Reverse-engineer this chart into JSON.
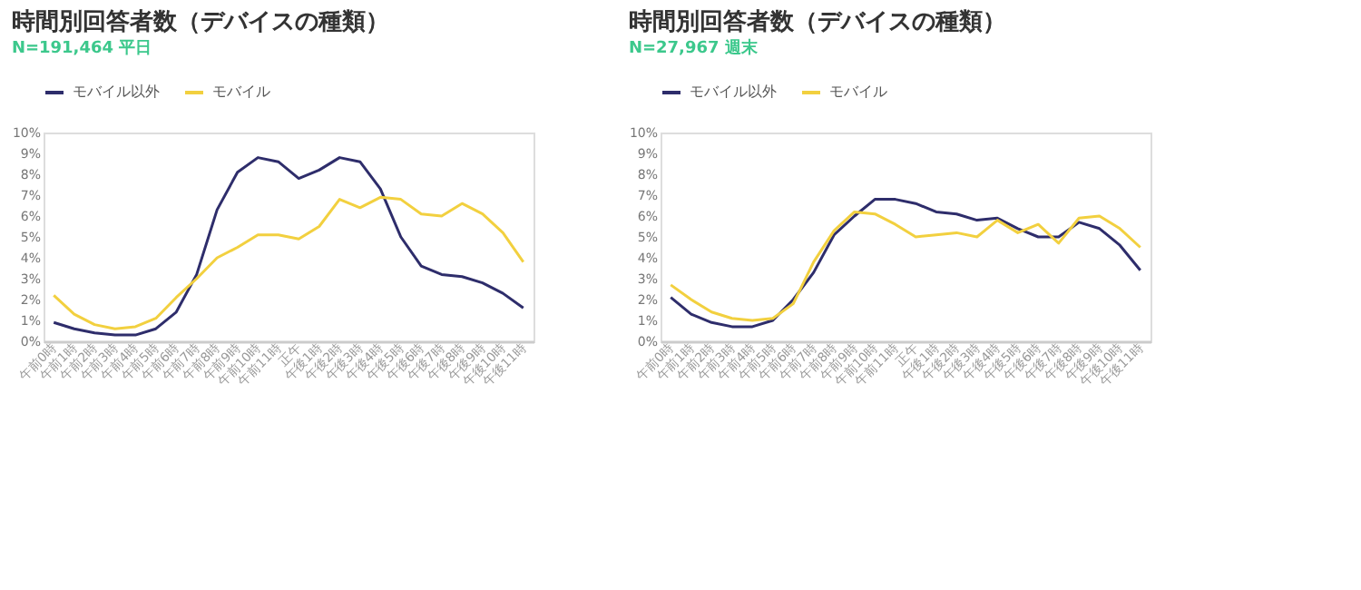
{
  "chart_data": [
    {
      "type": "line",
      "title": "時間別回答者数（デバイスの種類）",
      "subtitle": "N=191,464 平日",
      "categories": [
        "午前0時",
        "午前1時",
        "午前2時",
        "午前3時",
        "午前4時",
        "午前5時",
        "午前6時",
        "午前7時",
        "午前8時",
        "午前9時",
        "午前10時",
        "午前11時",
        "正午",
        "午後1時",
        "午後2時",
        "午後3時",
        "午後4時",
        "午後5時",
        "午後6時",
        "午後7時",
        "午後8時",
        "午後9時",
        "午後10時",
        "午後11時"
      ],
      "series": [
        {
          "name": "モバイル以外",
          "color": "#2e2d6b",
          "values": [
            0.9,
            0.6,
            0.4,
            0.3,
            0.3,
            0.6,
            1.4,
            3.2,
            6.3,
            8.1,
            8.8,
            8.6,
            7.8,
            8.2,
            8.8,
            8.6,
            7.3,
            5.0,
            3.6,
            3.2,
            3.1,
            2.8,
            2.3,
            1.6
          ]
        },
        {
          "name": "モバイル",
          "color": "#f2d03f",
          "values": [
            2.2,
            1.3,
            0.8,
            0.6,
            0.7,
            1.1,
            2.1,
            3.0,
            4.0,
            4.5,
            5.1,
            5.1,
            4.9,
            5.5,
            6.8,
            6.4,
            6.9,
            6.8,
            6.1,
            6.0,
            6.6,
            6.1,
            5.2,
            3.8
          ]
        }
      ],
      "ylim": [
        0,
        10
      ],
      "yticks": [
        {
          "value": 0,
          "label": "0%"
        },
        {
          "value": 1,
          "label": "1%"
        },
        {
          "value": 2,
          "label": "2%"
        },
        {
          "value": 3,
          "label": "3%"
        },
        {
          "value": 4,
          "label": "4%"
        },
        {
          "value": 5,
          "label": "5%"
        },
        {
          "value": 6,
          "label": "6%"
        },
        {
          "value": 7,
          "label": "7%"
        },
        {
          "value": 8,
          "label": "8%"
        },
        {
          "value": 9,
          "label": "9%"
        },
        {
          "value": 10,
          "label": "10%"
        }
      ],
      "grid": false,
      "legend": "top",
      "marker": "none",
      "line_style": "solid"
    },
    {
      "type": "line",
      "title": "時間別回答者数（デバイスの種類）",
      "subtitle": "N=27,967 週末",
      "categories": [
        "午前0時",
        "午前1時",
        "午前2時",
        "午前3時",
        "午前4時",
        "午前5時",
        "午前6時",
        "午前7時",
        "午前8時",
        "午前9時",
        "午前10時",
        "午前11時",
        "正午",
        "午後1時",
        "午後2時",
        "午後3時",
        "午後4時",
        "午後5時",
        "午後6時",
        "午後7時",
        "午後8時",
        "午後9時",
        "午後10時",
        "午後11時"
      ],
      "series": [
        {
          "name": "モバイル以外",
          "color": "#2e2d6b",
          "values": [
            2.1,
            1.3,
            0.9,
            0.7,
            0.7,
            1.0,
            2.0,
            3.3,
            5.1,
            6.0,
            6.8,
            6.8,
            6.6,
            6.2,
            6.1,
            5.8,
            5.9,
            5.4,
            5.0,
            5.0,
            5.7,
            5.4,
            4.6,
            3.4
          ]
        },
        {
          "name": "モバイル",
          "color": "#f2d03f",
          "values": [
            2.7,
            2.0,
            1.4,
            1.1,
            1.0,
            1.1,
            1.8,
            3.8,
            5.3,
            6.2,
            6.1,
            5.6,
            5.0,
            5.1,
            5.2,
            5.0,
            5.8,
            5.2,
            5.6,
            4.7,
            5.9,
            6.0,
            5.4,
            4.5
          ]
        }
      ],
      "ylim": [
        0,
        10
      ],
      "yticks": [
        {
          "value": 0,
          "label": "0%"
        },
        {
          "value": 1,
          "label": "1%"
        },
        {
          "value": 2,
          "label": "2%"
        },
        {
          "value": 3,
          "label": "3%"
        },
        {
          "value": 4,
          "label": "4%"
        },
        {
          "value": 5,
          "label": "5%"
        },
        {
          "value": 6,
          "label": "6%"
        },
        {
          "value": 7,
          "label": "7%"
        },
        {
          "value": 8,
          "label": "8%"
        },
        {
          "value": 9,
          "label": "9%"
        },
        {
          "value": 10,
          "label": "10%"
        }
      ],
      "grid": false,
      "legend": "top",
      "marker": "none",
      "line_style": "solid"
    }
  ]
}
